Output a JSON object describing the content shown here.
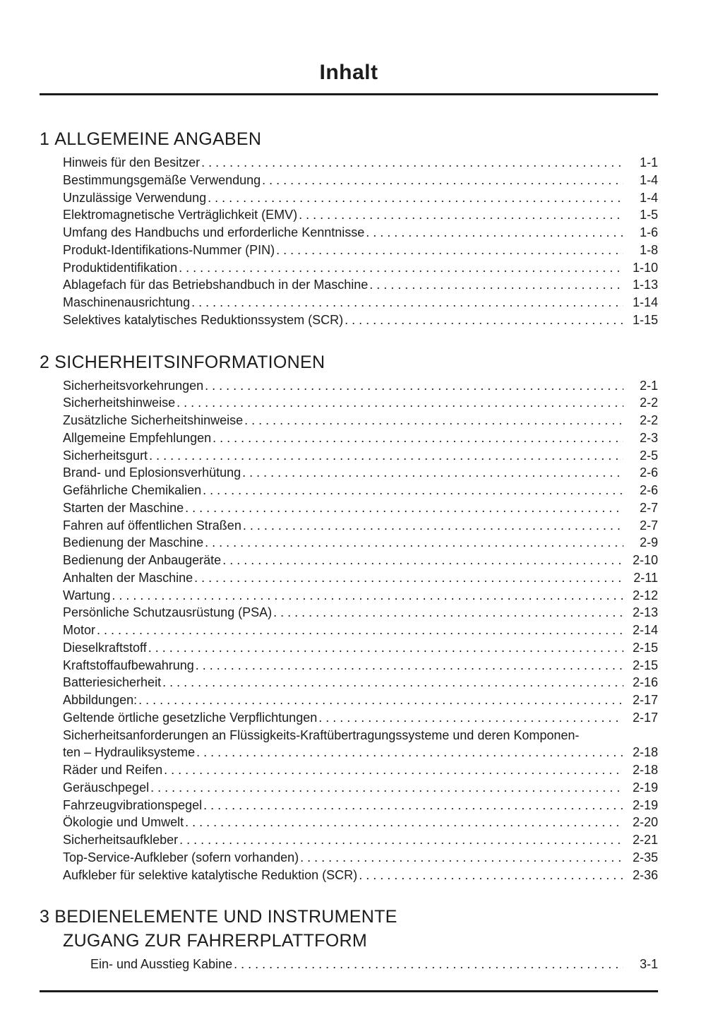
{
  "page": {
    "title": "Inhalt"
  },
  "sections": [
    {
      "number": "1",
      "heading": "ALLGEMEINE ANGABEN",
      "entries": [
        {
          "label": "Hinweis für den Besitzer",
          "page": "1-1"
        },
        {
          "label": "Bestimmungsgemäße Verwendung",
          "page": "1-4"
        },
        {
          "label": "Unzulässige Verwendung",
          "page": "1-4"
        },
        {
          "label": "Elektromagnetische Verträglichkeit (EMV)",
          "page": "1-5"
        },
        {
          "label": "Umfang des Handbuchs und erforderliche Kenntnisse",
          "page": "1-6"
        },
        {
          "label": "Produkt-Identifikations-Nummer (PIN)",
          "page": "1-8"
        },
        {
          "label": "Produktidentifikation",
          "page": "1-10"
        },
        {
          "label": "Ablagefach für das Betriebshandbuch in der Maschine",
          "page": "1-13"
        },
        {
          "label": "Maschinenausrichtung",
          "page": "1-14"
        },
        {
          "label": "Selektives katalytisches Reduktionssystem (SCR)",
          "page": "1-15"
        }
      ]
    },
    {
      "number": "2",
      "heading": "SICHERHEITSINFORMATIONEN",
      "entries": [
        {
          "label": "Sicherheitsvorkehrungen",
          "page": "2-1"
        },
        {
          "label": "Sicherheitshinweise",
          "page": "2-2"
        },
        {
          "label": "Zusätzliche Sicherheitshinweise",
          "page": "2-2"
        },
        {
          "label": "Allgemeine Empfehlungen",
          "page": "2-3"
        },
        {
          "label": "Sicherheitsgurt",
          "page": "2-5"
        },
        {
          "label": "Brand- und Eplosionsverhütung",
          "page": "2-6"
        },
        {
          "label": "Gefährliche Chemikalien",
          "page": "2-6"
        },
        {
          "label": "Starten der Maschine",
          "page": "2-7"
        },
        {
          "label": "Fahren auf öffentlichen Straßen",
          "page": "2-7"
        },
        {
          "label": "Bedienung der Maschine",
          "page": "2-9"
        },
        {
          "label": "Bedienung der Anbaugeräte",
          "page": "2-10"
        },
        {
          "label": "Anhalten der Maschine",
          "page": "2-11"
        },
        {
          "label": "Wartung",
          "page": "2-12"
        },
        {
          "label": "Persönliche Schutzausrüstung (PSA)",
          "page": "2-13"
        },
        {
          "label": "Motor",
          "page": "2-14"
        },
        {
          "label": "Dieselkraftstoff",
          "page": "2-15"
        },
        {
          "label": "Kraftstoffaufbewahrung",
          "page": "2-15"
        },
        {
          "label": "Batteriesicherheit",
          "page": "2-16"
        },
        {
          "label": "Abbildungen:",
          "page": "2-17"
        },
        {
          "label": "Geltende örtliche gesetzliche Verpflichtungen",
          "page": "2-17"
        },
        {
          "label": "Sicherheitsanforderungen an Flüssigkeits-Kraftübertragungssysteme und deren Komponen-",
          "page": null
        },
        {
          "label": "ten – Hydrauliksysteme",
          "page": "2-18"
        },
        {
          "label": "Räder und Reifen",
          "page": "2-18"
        },
        {
          "label": "Geräuschpegel",
          "page": "2-19"
        },
        {
          "label": "Fahrzeugvibrationspegel",
          "page": "2-19"
        },
        {
          "label": "Ökologie und Umwelt",
          "page": "2-20"
        },
        {
          "label": "Sicherheitsaufkleber",
          "page": "2-21"
        },
        {
          "label": "Top-Service-Aufkleber (sofern vorhanden)",
          "page": "2-35"
        },
        {
          "label": "Aufkleber für selektive katalytische Reduktion (SCR)",
          "page": "2-36"
        }
      ]
    },
    {
      "number": "3",
      "heading": "BEDIENELEMENTE UND INSTRUMENTE",
      "subheading": "ZUGANG ZUR FAHRERPLATTFORM",
      "entries": [
        {
          "label": "Ein- und Ausstieg Kabine",
          "page": "3-1",
          "indent": true
        }
      ]
    }
  ]
}
